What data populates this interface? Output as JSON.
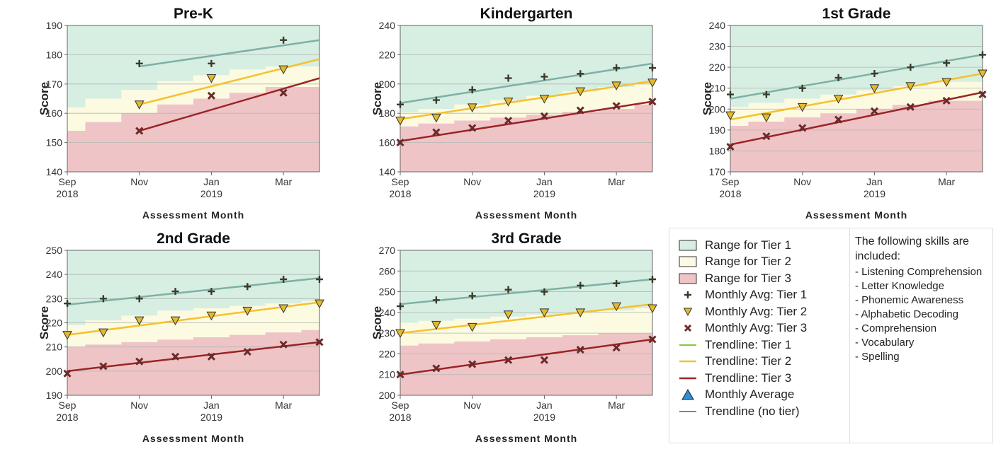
{
  "chart_data": [
    {
      "type": "line",
      "title": "Pre-K",
      "xlabel": "Assessment Month",
      "ylabel": "Score",
      "ylim": [
        140,
        190
      ],
      "yticks": [
        140,
        150,
        160,
        170,
        180,
        190
      ],
      "xlim": [
        "2018-09",
        "2019-04"
      ],
      "x_tick_labels": [
        {
          "x": "2018-09",
          "lines": [
            "Sep",
            "2018"
          ]
        },
        {
          "x": "2018-11",
          "lines": [
            "Nov"
          ]
        },
        {
          "x": "2019-01",
          "lines": [
            "Jan",
            "2019"
          ]
        },
        {
          "x": "2019-03",
          "lines": [
            "Mar"
          ]
        }
      ],
      "tier_bands": {
        "months": [
          "2018-09",
          "2018-10",
          "2018-11",
          "2018-12",
          "2019-01",
          "2019-02",
          "2019-03",
          "2019-04"
        ],
        "tier3_upper": [
          154,
          157,
          160,
          163,
          165,
          167,
          169,
          169
        ],
        "tier2_upper": [
          162,
          165,
          168,
          171,
          173,
          175,
          176,
          176
        ]
      },
      "series": [
        {
          "name": "Monthly Avg: Tier 1",
          "marker": "plus",
          "x": [
            "2018-11",
            "2019-01",
            "2019-03"
          ],
          "values": [
            177,
            177,
            185
          ]
        },
        {
          "name": "Monthly Avg: Tier 2",
          "marker": "triangle-down",
          "x": [
            "2018-11",
            "2019-01",
            "2019-03"
          ],
          "values": [
            163,
            172,
            175
          ]
        },
        {
          "name": "Monthly Avg: Tier 3",
          "marker": "x",
          "x": [
            "2018-11",
            "2019-01",
            "2019-03"
          ],
          "values": [
            154,
            166,
            167
          ]
        }
      ],
      "trendlines": [
        {
          "name": "Trendline: Tier 1",
          "x": [
            "2018-11",
            "2019-04"
          ],
          "values": [
            176,
            185
          ]
        },
        {
          "name": "Trendline: Tier 2",
          "x": [
            "2018-11",
            "2019-04"
          ],
          "values": [
            163,
            178.5
          ]
        },
        {
          "name": "Trendline: Tier 3",
          "x": [
            "2018-11",
            "2019-04"
          ],
          "values": [
            154,
            172
          ]
        }
      ]
    },
    {
      "type": "line",
      "title": "Kindergarten",
      "xlabel": "Assessment Month",
      "ylabel": "Score",
      "ylim": [
        140,
        240
      ],
      "yticks": [
        140,
        160,
        180,
        200,
        220,
        240
      ],
      "xlim": [
        "2018-09",
        "2019-04"
      ],
      "x_tick_labels": [
        {
          "x": "2018-09",
          "lines": [
            "Sep",
            "2018"
          ]
        },
        {
          "x": "2018-11",
          "lines": [
            "Nov"
          ]
        },
        {
          "x": "2019-01",
          "lines": [
            "Jan",
            "2019"
          ]
        },
        {
          "x": "2019-03",
          "lines": [
            "Mar"
          ]
        }
      ],
      "tier_bands": {
        "months": [
          "2018-09",
          "2018-10",
          "2018-11",
          "2018-12",
          "2019-01",
          "2019-02",
          "2019-03",
          "2019-04"
        ],
        "tier3_upper": [
          171,
          173,
          175,
          177,
          179,
          181,
          183,
          186
        ],
        "tier2_upper": [
          181,
          183,
          186,
          189,
          192,
          195,
          198,
          200
        ]
      },
      "series": [
        {
          "name": "Monthly Avg: Tier 1",
          "marker": "plus",
          "x": [
            "2018-09",
            "2018-10",
            "2018-11",
            "2018-12",
            "2019-01",
            "2019-02",
            "2019-03",
            "2019-04"
          ],
          "values": [
            186,
            189,
            196,
            204,
            205,
            207,
            211,
            211
          ]
        },
        {
          "name": "Monthly Avg: Tier 2",
          "marker": "triangle-down",
          "x": [
            "2018-09",
            "2018-10",
            "2018-11",
            "2018-12",
            "2019-01",
            "2019-02",
            "2019-03",
            "2019-04"
          ],
          "values": [
            175,
            177,
            184,
            188,
            190,
            195,
            199,
            201
          ]
        },
        {
          "name": "Monthly Avg: Tier 3",
          "marker": "x",
          "x": [
            "2018-09",
            "2018-10",
            "2018-11",
            "2018-12",
            "2019-01",
            "2019-02",
            "2019-03",
            "2019-04"
          ],
          "values": [
            160,
            167,
            170,
            175,
            178,
            182,
            185,
            188
          ]
        }
      ],
      "trendlines": [
        {
          "name": "Trendline: Tier 1",
          "x": [
            "2018-09",
            "2019-04"
          ],
          "values": [
            187,
            214
          ]
        },
        {
          "name": "Trendline: Tier 2",
          "x": [
            "2018-09",
            "2019-04"
          ],
          "values": [
            176,
            202
          ]
        },
        {
          "name": "Trendline: Tier 3",
          "x": [
            "2018-09",
            "2019-04"
          ],
          "values": [
            161,
            188
          ]
        }
      ]
    },
    {
      "type": "line",
      "title": "1st Grade",
      "xlabel": "Assessment Month",
      "ylabel": "Score",
      "ylim": [
        170,
        240
      ],
      "yticks": [
        170,
        180,
        190,
        200,
        210,
        220,
        230,
        240
      ],
      "xlim": [
        "2018-09",
        "2019-04"
      ],
      "x_tick_labels": [
        {
          "x": "2018-09",
          "lines": [
            "Sep",
            "2018"
          ]
        },
        {
          "x": "2018-11",
          "lines": [
            "Nov"
          ]
        },
        {
          "x": "2019-01",
          "lines": [
            "Jan",
            "2019"
          ]
        },
        {
          "x": "2019-03",
          "lines": [
            "Mar"
          ]
        }
      ],
      "tier_bands": {
        "months": [
          "2018-09",
          "2018-10",
          "2018-11",
          "2018-12",
          "2019-01",
          "2019-02",
          "2019-03",
          "2019-04"
        ],
        "tier3_upper": [
          192,
          194,
          196,
          198,
          200,
          202,
          204,
          204
        ],
        "tier2_upper": [
          201,
          203,
          205,
          207,
          209,
          211,
          213,
          213
        ]
      },
      "series": [
        {
          "name": "Monthly Avg: Tier 1",
          "marker": "plus",
          "x": [
            "2018-09",
            "2018-10",
            "2018-11",
            "2018-12",
            "2019-01",
            "2019-02",
            "2019-03",
            "2019-04"
          ],
          "values": [
            207,
            207,
            210,
            215,
            217,
            220,
            222,
            226
          ]
        },
        {
          "name": "Monthly Avg: Tier 2",
          "marker": "triangle-down",
          "x": [
            "2018-09",
            "2018-10",
            "2018-11",
            "2018-12",
            "2019-01",
            "2019-02",
            "2019-03",
            "2019-04"
          ],
          "values": [
            197,
            196,
            201,
            205,
            210,
            211,
            213,
            217
          ]
        },
        {
          "name": "Monthly Avg: Tier 3",
          "marker": "x",
          "x": [
            "2018-09",
            "2018-10",
            "2018-11",
            "2018-12",
            "2019-01",
            "2019-02",
            "2019-03",
            "2019-04"
          ],
          "values": [
            182,
            187,
            191,
            195,
            199,
            201,
            204,
            207
          ]
        }
      ],
      "trendlines": [
        {
          "name": "Trendline: Tier 1",
          "x": [
            "2018-09",
            "2019-04"
          ],
          "values": [
            205,
            226
          ]
        },
        {
          "name": "Trendline: Tier 2",
          "x": [
            "2018-09",
            "2019-04"
          ],
          "values": [
            195,
            217
          ]
        },
        {
          "name": "Trendline: Tier 3",
          "x": [
            "2018-09",
            "2019-04"
          ],
          "values": [
            183,
            208
          ]
        }
      ]
    },
    {
      "type": "line",
      "title": "2nd Grade",
      "xlabel": "Assessment Month",
      "ylabel": "Score",
      "ylim": [
        190,
        250
      ],
      "yticks": [
        190,
        200,
        210,
        220,
        230,
        240,
        250
      ],
      "xlim": [
        "2018-09",
        "2019-04"
      ],
      "x_tick_labels": [
        {
          "x": "2018-09",
          "lines": [
            "Sep",
            "2018"
          ]
        },
        {
          "x": "2018-11",
          "lines": [
            "Nov"
          ]
        },
        {
          "x": "2019-01",
          "lines": [
            "Jan",
            "2019"
          ]
        },
        {
          "x": "2019-03",
          "lines": [
            "Mar"
          ]
        }
      ],
      "tier_bands": {
        "months": [
          "2018-09",
          "2018-10",
          "2018-11",
          "2018-12",
          "2019-01",
          "2019-02",
          "2019-03",
          "2019-04"
        ],
        "tier3_upper": [
          210,
          211,
          212,
          213,
          214,
          215,
          216,
          217
        ],
        "tier2_upper": [
          219,
          221,
          223,
          225,
          226,
          227,
          228,
          229
        ]
      },
      "series": [
        {
          "name": "Monthly Avg: Tier 1",
          "marker": "plus",
          "x": [
            "2018-09",
            "2018-10",
            "2018-11",
            "2018-12",
            "2019-01",
            "2019-02",
            "2019-03",
            "2019-04"
          ],
          "values": [
            228,
            230,
            230,
            233,
            233,
            235,
            238,
            238
          ]
        },
        {
          "name": "Monthly Avg: Tier 2",
          "marker": "triangle-down",
          "x": [
            "2018-09",
            "2018-10",
            "2018-11",
            "2018-12",
            "2019-01",
            "2019-02",
            "2019-03",
            "2019-04"
          ],
          "values": [
            215,
            216,
            221,
            221,
            223,
            225,
            226,
            228
          ]
        },
        {
          "name": "Monthly Avg: Tier 3",
          "marker": "x",
          "x": [
            "2018-09",
            "2018-10",
            "2018-11",
            "2018-12",
            "2019-01",
            "2019-02",
            "2019-03",
            "2019-04"
          ],
          "values": [
            199,
            202,
            204,
            206,
            206,
            208,
            211,
            212
          ]
        }
      ],
      "trendlines": [
        {
          "name": "Trendline: Tier 1",
          "x": [
            "2018-09",
            "2019-04"
          ],
          "values": [
            227.5,
            238.5
          ]
        },
        {
          "name": "Trendline: Tier 2",
          "x": [
            "2018-09",
            "2019-04"
          ],
          "values": [
            215,
            228.5
          ]
        },
        {
          "name": "Trendline: Tier 3",
          "x": [
            "2018-09",
            "2019-04"
          ],
          "values": [
            200,
            212
          ]
        }
      ]
    },
    {
      "type": "line",
      "title": "3rd Grade",
      "xlabel": "Assessment Month",
      "ylabel": "Score",
      "ylim": [
        200,
        270
      ],
      "yticks": [
        200,
        210,
        220,
        230,
        240,
        250,
        260,
        270
      ],
      "xlim": [
        "2018-09",
        "2019-04"
      ],
      "x_tick_labels": [
        {
          "x": "2018-09",
          "lines": [
            "Sep",
            "2018"
          ]
        },
        {
          "x": "2018-11",
          "lines": [
            "Nov"
          ]
        },
        {
          "x": "2019-01",
          "lines": [
            "Jan",
            "2019"
          ]
        },
        {
          "x": "2019-03",
          "lines": [
            "Mar"
          ]
        }
      ],
      "tier_bands": {
        "months": [
          "2018-09",
          "2018-10",
          "2018-11",
          "2018-12",
          "2019-01",
          "2019-02",
          "2019-03",
          "2019-04"
        ],
        "tier3_upper": [
          224,
          225,
          226,
          227,
          228,
          229,
          230,
          230
        ],
        "tier2_upper": [
          235,
          236,
          237,
          238,
          239,
          240,
          241,
          242
        ]
      },
      "series": [
        {
          "name": "Monthly Avg: Tier 1",
          "marker": "plus",
          "x": [
            "2018-09",
            "2018-10",
            "2018-11",
            "2018-12",
            "2019-01",
            "2019-02",
            "2019-03",
            "2019-04"
          ],
          "values": [
            243,
            246,
            248,
            251,
            250,
            253,
            254,
            256
          ]
        },
        {
          "name": "Monthly Avg: Tier 2",
          "marker": "triangle-down",
          "x": [
            "2018-09",
            "2018-10",
            "2018-11",
            "2018-12",
            "2019-01",
            "2019-02",
            "2019-03",
            "2019-04"
          ],
          "values": [
            230,
            234,
            233,
            239,
            240,
            240,
            243,
            242
          ]
        },
        {
          "name": "Monthly Avg: Tier 3",
          "marker": "x",
          "x": [
            "2018-09",
            "2018-10",
            "2018-11",
            "2018-12",
            "2019-01",
            "2019-02",
            "2019-03",
            "2019-04"
          ],
          "values": [
            210,
            213,
            215,
            217,
            217,
            222,
            223,
            227
          ]
        }
      ],
      "trendlines": [
        {
          "name": "Trendline: Tier 1",
          "x": [
            "2018-09",
            "2019-04"
          ],
          "values": [
            244,
            256
          ]
        },
        {
          "name": "Trendline: Tier 2",
          "x": [
            "2018-09",
            "2019-04"
          ],
          "values": [
            230,
            244
          ]
        },
        {
          "name": "Trendline: Tier 3",
          "x": [
            "2018-09",
            "2019-04"
          ],
          "values": [
            210,
            227
          ]
        }
      ]
    }
  ],
  "colors": {
    "tier1_band": "#d7eee2",
    "tier2_band": "#fcfae0",
    "tier3_band": "#efc4c7",
    "tier1_trend": "#7fb0a5",
    "tier2_trend": "#f5c12c",
    "tier3_trend": "#9a2424",
    "tier1_marker": "#3a3a2a",
    "tier2_marker": "#e4b92c",
    "tier3_marker": "#6a2a2a",
    "gridline": "#b0b8b3",
    "axis": "#666666",
    "legend_trend_tier1": "#8cc63f",
    "legend_monthly_average": "#2e8fd8",
    "legend_trend_no_tier": "#2e9fe8"
  },
  "legend": {
    "items": [
      {
        "label": "Range for Tier 1",
        "type": "box",
        "color": "#d7eee2"
      },
      {
        "label": "Range for Tier 2",
        "type": "box",
        "color": "#fcfae0"
      },
      {
        "label": "Range for Tier 3",
        "type": "box",
        "color": "#efc4c7"
      },
      {
        "label": "Monthly Avg: Tier 1",
        "type": "plus",
        "color": "#3a3a2a"
      },
      {
        "label": "Monthly Avg: Tier 2",
        "type": "triangle-down",
        "color": "#e4b92c"
      },
      {
        "label": "Monthly Avg: Tier 3",
        "type": "x",
        "color": "#6a2a2a"
      },
      {
        "label": "Trendline: Tier 1",
        "type": "line",
        "color": "#8cc63f"
      },
      {
        "label": "Trendline: Tier 2",
        "type": "line",
        "color": "#f5c12c"
      },
      {
        "label": "Trendline: Tier 3",
        "type": "line",
        "color": "#9a2424"
      },
      {
        "label": "Monthly Average",
        "type": "triangle-up",
        "color": "#2e8fd8"
      },
      {
        "label": "Trendline (no tier)",
        "type": "line",
        "color": "#2e9fe8"
      }
    ],
    "skills_heading": "The following skills are included:",
    "skills": [
      "- Listening Comprehension",
      "- Letter Knowledge",
      "- Phonemic Awareness",
      "- Alphabetic Decoding",
      "- Comprehension",
      "- Vocabulary",
      "- Spelling"
    ]
  }
}
